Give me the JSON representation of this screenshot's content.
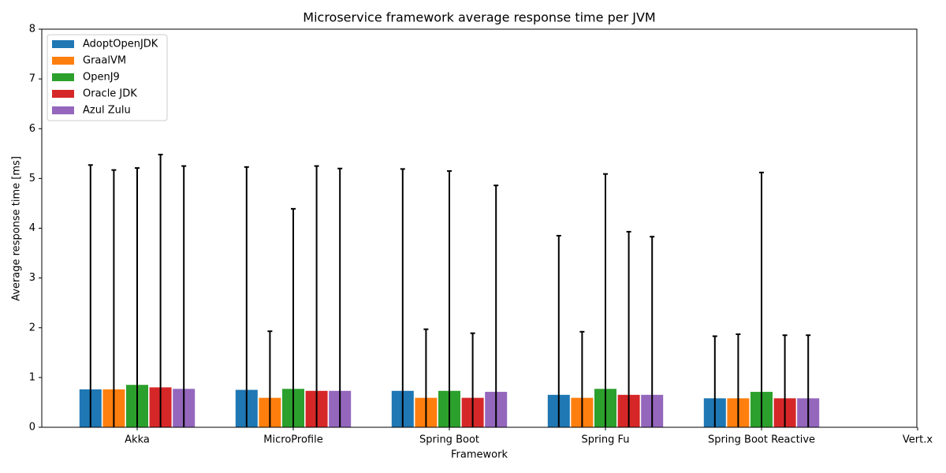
{
  "chart_data": {
    "type": "bar",
    "title": "Microservice framework average response time per JVM",
    "x_label": "Framework",
    "y_label": "Average response time [ms]",
    "categories": [
      "Akka",
      "MicroProfile",
      "Spring Boot",
      "Spring Fu",
      "Spring Boot Reactive",
      "Vert.x"
    ],
    "series": [
      {
        "name": "AdoptOpenJDK",
        "color": "#1f77b4",
        "values": [
          0.77,
          0.76,
          0.74,
          0.66,
          0.59,
          null
        ],
        "errors": [
          4.5,
          4.47,
          4.45,
          3.19,
          1.24,
          null
        ]
      },
      {
        "name": "GraalVM",
        "color": "#ff7f0e",
        "values": [
          0.77,
          0.6,
          0.6,
          0.6,
          0.59,
          null
        ],
        "errors": [
          4.4,
          1.33,
          1.37,
          1.32,
          1.28,
          null
        ]
      },
      {
        "name": "OpenJ9",
        "color": "#2ca02c",
        "values": [
          0.86,
          0.78,
          0.74,
          0.78,
          0.72,
          null
        ],
        "errors": [
          4.35,
          3.61,
          4.41,
          4.31,
          4.4,
          null
        ]
      },
      {
        "name": "Oracle JDK",
        "color": "#d62728",
        "values": [
          0.81,
          0.74,
          0.6,
          0.66,
          0.59,
          null
        ],
        "errors": [
          4.67,
          4.51,
          1.29,
          3.27,
          1.26,
          null
        ]
      },
      {
        "name": "Azul Zulu",
        "color": "#9467bd",
        "values": [
          0.78,
          0.74,
          0.72,
          0.66,
          0.59,
          null
        ],
        "errors": [
          4.47,
          4.46,
          4.14,
          3.17,
          1.26,
          null
        ]
      }
    ],
    "ylim": [
      0,
      8
    ],
    "yticks": [
      0,
      1,
      2,
      3,
      4,
      5,
      6,
      7,
      8
    ],
    "legend": "upper left",
    "grid": false
  }
}
